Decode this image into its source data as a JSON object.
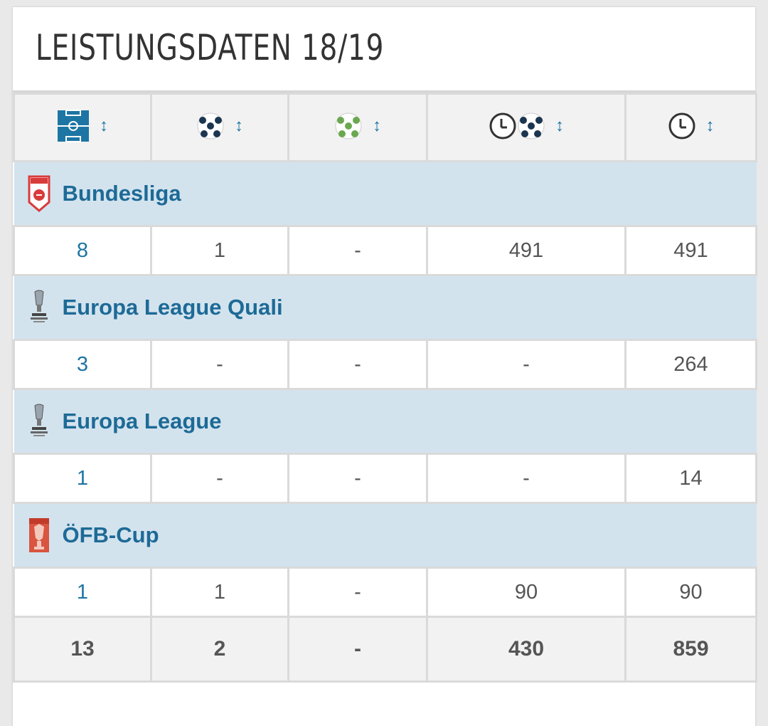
{
  "title": "LEISTUNGSDATEN 18/19",
  "colors": {
    "accent": "#1d75a3",
    "row_band": "#d3e3ee",
    "header_bg": "#f2f2f2"
  },
  "header": {
    "columns": [
      {
        "icon": "pitch-icon",
        "sort": "↕"
      },
      {
        "icon": "ball-icon",
        "sort": "↕"
      },
      {
        "icon": "ball-green-icon",
        "sort": "↕"
      },
      {
        "icon": "clock-ball-icon",
        "sort": "↕"
      },
      {
        "icon": "clock-icon",
        "sort": "↕"
      }
    ]
  },
  "competitions": [
    {
      "name": "Bundesliga",
      "logo": "bundesliga-logo",
      "values": [
        "8",
        "1",
        "-",
        "491",
        "491"
      ]
    },
    {
      "name": "Europa League Quali",
      "logo": "europa-league-logo",
      "values": [
        "3",
        "-",
        "-",
        "-",
        "264"
      ]
    },
    {
      "name": "Europa League",
      "logo": "europa-league-logo",
      "values": [
        "1",
        "-",
        "-",
        "-",
        "14"
      ]
    },
    {
      "name": "ÖFB-Cup",
      "logo": "oefb-cup-logo",
      "values": [
        "1",
        "1",
        "-",
        "90",
        "90"
      ]
    }
  ],
  "totals": [
    "13",
    "2",
    "-",
    "430",
    "859"
  ]
}
